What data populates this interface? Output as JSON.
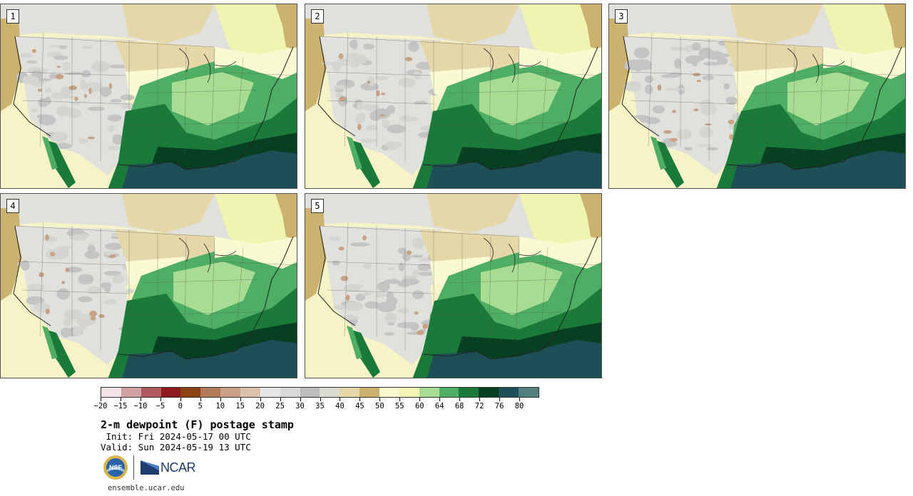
{
  "panels": [
    {
      "label": "1"
    },
    {
      "label": "2"
    },
    {
      "label": "3"
    },
    {
      "label": "4"
    },
    {
      "label": "5"
    }
  ],
  "colorbar": {
    "colors": [
      "#f3e5e5",
      "#d4a1a3",
      "#b05a5e",
      "#8e1a20",
      "#8a4414",
      "#b07a58",
      "#c9a184",
      "#dcc2ad",
      "#e6e6e6",
      "#d9d9d9",
      "#bdbdbd",
      "#dcdcd0",
      "#e6d7a9",
      "#ccb26f",
      "#fafad2",
      "#f3f5b2",
      "#a7dc92",
      "#4eae63",
      "#1a7a3a",
      "#073f23",
      "#1e4e56",
      "#537e7e"
    ],
    "tick_labels": [
      "−20",
      "−15",
      "−10",
      "−5",
      "0",
      "5",
      "10",
      "15",
      "20",
      "25",
      "30",
      "35",
      "40",
      "45",
      "50",
      "55",
      "60",
      "64",
      "68",
      "72",
      "76",
      "80"
    ]
  },
  "title": "2-m dewpoint (F) postage stamp",
  "init": " Init: Fri 2024-05-17 00 UTC",
  "valid": "Valid: Sun 2024-05-19 13 UTC",
  "logos": {
    "nsf_text": "NSF",
    "ncar_text": "NCAR"
  },
  "site": "ensemble.ucar.edu"
}
